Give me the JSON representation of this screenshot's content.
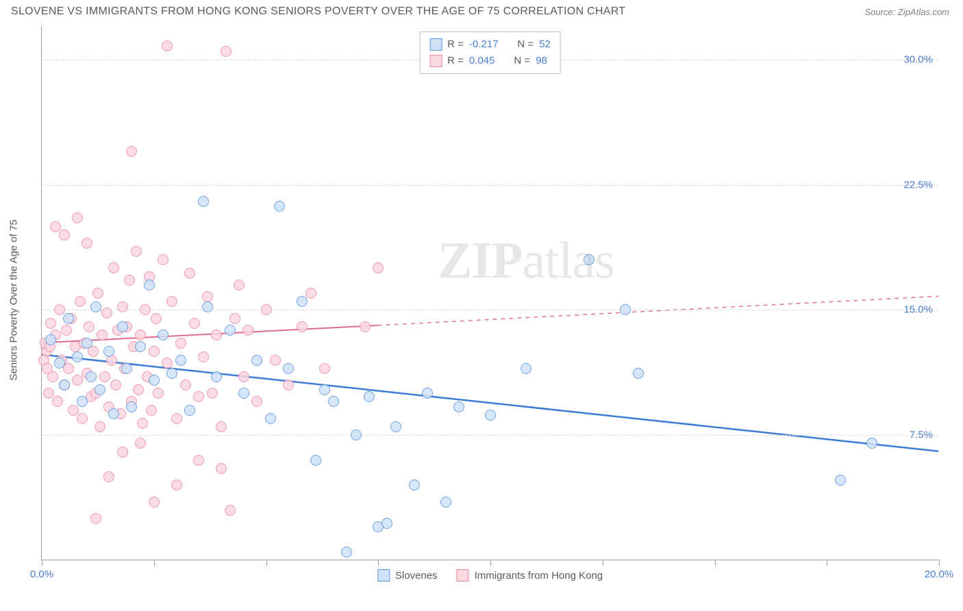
{
  "header": {
    "title": "SLOVENE VS IMMIGRANTS FROM HONG KONG SENIORS POVERTY OVER THE AGE OF 75 CORRELATION CHART",
    "source": "Source: ZipAtlas.com"
  },
  "ylabel": "Seniors Poverty Over the Age of 75",
  "watermark": {
    "part1": "ZIP",
    "part2": "atlas"
  },
  "chart": {
    "type": "scatter",
    "xlim": [
      0,
      20
    ],
    "ylim": [
      0,
      32
    ],
    "x_ticks": [
      0,
      2.5,
      5,
      7.5,
      10,
      12.5,
      15,
      17.5,
      20
    ],
    "x_tick_labels": {
      "0": "0.0%",
      "20": "20.0%"
    },
    "y_gridlines": [
      7.5,
      15,
      22.5,
      30
    ],
    "y_tick_labels": {
      "7.5": "7.5%",
      "15": "15.0%",
      "22.5": "22.5%",
      "30": "30.0%"
    },
    "background_color": "#ffffff",
    "grid_color": "#d8d8d8",
    "axis_color": "#9e9e9e"
  },
  "series": [
    {
      "name": "Slovenes",
      "R": "-0.217",
      "N": "52",
      "marker_fill": "#cfe2f9",
      "marker_stroke": "#5b93db",
      "marker_radius": 8,
      "marker_opacity": 0.85,
      "trend": {
        "x1": 0,
        "y1": 12.3,
        "x2": 20,
        "y2": 6.5,
        "dash_from_x": 20,
        "color": "#3d7cd6",
        "width": 2.5
      },
      "points": [
        [
          0.2,
          13.2
        ],
        [
          0.4,
          11.8
        ],
        [
          0.5,
          10.5
        ],
        [
          0.6,
          14.5
        ],
        [
          0.8,
          12.2
        ],
        [
          0.9,
          9.5
        ],
        [
          1.0,
          13.0
        ],
        [
          1.1,
          11.0
        ],
        [
          1.2,
          15.2
        ],
        [
          1.3,
          10.2
        ],
        [
          1.5,
          12.5
        ],
        [
          1.6,
          8.8
        ],
        [
          1.8,
          14.0
        ],
        [
          1.9,
          11.5
        ],
        [
          2.0,
          9.2
        ],
        [
          2.2,
          12.8
        ],
        [
          2.4,
          16.5
        ],
        [
          2.5,
          10.8
        ],
        [
          2.7,
          13.5
        ],
        [
          2.9,
          11.2
        ],
        [
          3.1,
          12.0
        ],
        [
          3.3,
          9.0
        ],
        [
          3.6,
          21.5
        ],
        [
          3.7,
          15.2
        ],
        [
          3.9,
          11.0
        ],
        [
          4.2,
          13.8
        ],
        [
          4.5,
          10.0
        ],
        [
          4.8,
          12.0
        ],
        [
          5.1,
          8.5
        ],
        [
          5.3,
          21.2
        ],
        [
          5.5,
          11.5
        ],
        [
          5.8,
          15.5
        ],
        [
          6.1,
          6.0
        ],
        [
          6.3,
          10.2
        ],
        [
          6.5,
          9.5
        ],
        [
          6.8,
          0.5
        ],
        [
          7.0,
          7.5
        ],
        [
          7.3,
          9.8
        ],
        [
          7.5,
          2.0
        ],
        [
          7.7,
          2.2
        ],
        [
          7.9,
          8.0
        ],
        [
          8.3,
          4.5
        ],
        [
          8.6,
          10.0
        ],
        [
          9.0,
          3.5
        ],
        [
          9.3,
          9.2
        ],
        [
          10.0,
          8.7
        ],
        [
          10.8,
          11.5
        ],
        [
          12.2,
          18.0
        ],
        [
          13.0,
          15.0
        ],
        [
          13.3,
          11.2
        ],
        [
          17.8,
          4.8
        ],
        [
          18.5,
          7.0
        ]
      ]
    },
    {
      "name": "Immigrants from Hong Kong",
      "R": "0.045",
      "N": "98",
      "marker_fill": "#fbd7e0",
      "marker_stroke": "#e989a4",
      "marker_radius": 8,
      "marker_opacity": 0.85,
      "trend": {
        "x1": 0,
        "y1": 13.0,
        "x2": 20,
        "y2": 15.8,
        "dash_from_x": 7.5,
        "color": "#e26a8a",
        "width": 2
      },
      "points": [
        [
          0.1,
          12.5
        ],
        [
          0.15,
          10.0
        ],
        [
          0.2,
          14.2
        ],
        [
          0.25,
          11.0
        ],
        [
          0.3,
          13.5
        ],
        [
          0.35,
          9.5
        ],
        [
          0.4,
          15.0
        ],
        [
          0.45,
          12.0
        ],
        [
          0.5,
          10.5
        ],
        [
          0.55,
          13.8
        ],
        [
          0.6,
          11.5
        ],
        [
          0.65,
          14.5
        ],
        [
          0.7,
          9.0
        ],
        [
          0.75,
          12.8
        ],
        [
          0.8,
          10.8
        ],
        [
          0.85,
          15.5
        ],
        [
          0.9,
          8.5
        ],
        [
          0.95,
          13.0
        ],
        [
          1.0,
          11.2
        ],
        [
          1.05,
          14.0
        ],
        [
          1.1,
          9.8
        ],
        [
          1.15,
          12.5
        ],
        [
          1.2,
          10.0
        ],
        [
          1.25,
          16.0
        ],
        [
          1.3,
          8.0
        ],
        [
          1.35,
          13.5
        ],
        [
          1.4,
          11.0
        ],
        [
          1.45,
          14.8
        ],
        [
          1.5,
          9.2
        ],
        [
          1.55,
          12.0
        ],
        [
          1.6,
          17.5
        ],
        [
          1.65,
          10.5
        ],
        [
          1.7,
          13.8
        ],
        [
          1.75,
          8.8
        ],
        [
          1.8,
          15.2
        ],
        [
          1.85,
          11.5
        ],
        [
          1.9,
          14.0
        ],
        [
          1.95,
          16.8
        ],
        [
          2.0,
          9.5
        ],
        [
          2.05,
          12.8
        ],
        [
          2.1,
          18.5
        ],
        [
          2.15,
          10.2
        ],
        [
          2.2,
          13.5
        ],
        [
          2.25,
          8.2
        ],
        [
          2.3,
          15.0
        ],
        [
          2.35,
          11.0
        ],
        [
          2.4,
          17.0
        ],
        [
          2.45,
          9.0
        ],
        [
          2.5,
          12.5
        ],
        [
          2.55,
          14.5
        ],
        [
          2.6,
          10.0
        ],
        [
          2.7,
          18.0
        ],
        [
          2.8,
          11.8
        ],
        [
          2.9,
          15.5
        ],
        [
          3.0,
          8.5
        ],
        [
          3.1,
          13.0
        ],
        [
          3.2,
          10.5
        ],
        [
          3.3,
          17.2
        ],
        [
          3.4,
          14.2
        ],
        [
          3.5,
          9.8
        ],
        [
          3.6,
          12.2
        ],
        [
          3.7,
          15.8
        ],
        [
          3.8,
          10.0
        ],
        [
          3.9,
          13.5
        ],
        [
          4.0,
          8.0
        ],
        [
          4.1,
          30.5
        ],
        [
          4.2,
          3.0
        ],
        [
          4.3,
          14.5
        ],
        [
          4.4,
          16.5
        ],
        [
          4.5,
          11.0
        ],
        [
          4.6,
          13.8
        ],
        [
          4.8,
          9.5
        ],
        [
          5.0,
          15.0
        ],
        [
          5.2,
          12.0
        ],
        [
          5.5,
          10.5
        ],
        [
          5.8,
          14.0
        ],
        [
          6.0,
          16.0
        ],
        [
          6.3,
          11.5
        ],
        [
          2.0,
          24.5
        ],
        [
          2.8,
          30.8
        ],
        [
          0.3,
          20.0
        ],
        [
          0.5,
          19.5
        ],
        [
          0.8,
          20.5
        ],
        [
          1.0,
          19.0
        ],
        [
          1.2,
          2.5
        ],
        [
          1.5,
          5.0
        ],
        [
          1.8,
          6.5
        ],
        [
          2.2,
          7.0
        ],
        [
          2.5,
          3.5
        ],
        [
          3.0,
          4.5
        ],
        [
          3.5,
          6.0
        ],
        [
          4.0,
          5.5
        ],
        [
          7.2,
          14.0
        ],
        [
          7.5,
          17.5
        ],
        [
          0.05,
          12.0
        ],
        [
          0.08,
          13.0
        ],
        [
          0.12,
          11.5
        ],
        [
          0.18,
          12.8
        ]
      ]
    }
  ],
  "legend_top": {
    "R_label": "R = ",
    "N_label": "N = "
  },
  "legend_bottom_items": [
    {
      "label": "Slovenes",
      "fill": "#cfe2f9",
      "stroke": "#5b93db"
    },
    {
      "label": "Immigrants from Hong Kong",
      "fill": "#fbd7e0",
      "stroke": "#e989a4"
    }
  ]
}
